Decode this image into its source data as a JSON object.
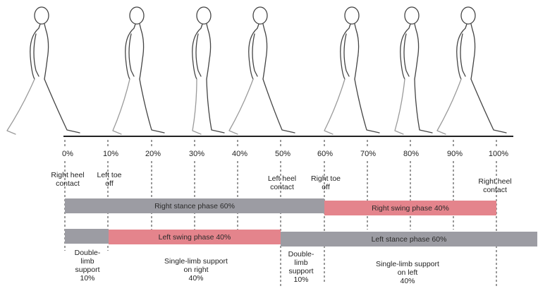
{
  "colors": {
    "stance": "#9c9ca3",
    "swing": "#e4848c",
    "outline": "#444444"
  },
  "percentages": [
    "0%",
    "10%",
    "20%",
    "30%",
    "40%",
    "50%",
    "60%",
    "70%",
    "80%",
    "90%",
    "100%"
  ],
  "events": {
    "right_heel_contact_start": "Right heel\ncontact",
    "left_toe_off": "Left toe\noff",
    "left_heel_contact": "Left heel\ncontact",
    "right_toe_off": "Right toe\noff",
    "right_heel_contact_end": "Right heel\ncontact"
  },
  "bars": {
    "right_stance": "Right stance phase 60%",
    "right_swing": "Right swing phase 40%",
    "left_swing": "Left swing phase 40%",
    "left_stance": "Left stance phase 60%"
  },
  "support": {
    "double_1": "Double-\nlimb\nsupport\n10%",
    "single_right": "Single-limb support\non right\n40%",
    "double_2": "Double-\nlimb\nsupport\n10%",
    "single_left": "Single-limb support\non left\n40%"
  }
}
